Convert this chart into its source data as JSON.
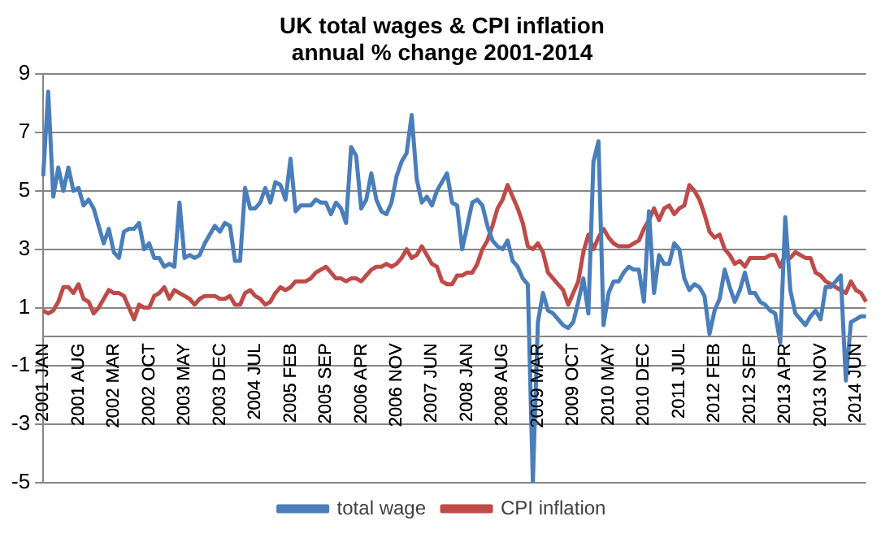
{
  "chart_data": {
    "type": "line",
    "title": [
      "UK total wages & CPI inflation",
      "annual % change 2001-2014"
    ],
    "categories": [
      "2001 JAN",
      null,
      null,
      null,
      null,
      null,
      null,
      "2001 AUG",
      null,
      null,
      null,
      null,
      null,
      null,
      "2002 MAR",
      null,
      null,
      null,
      null,
      null,
      null,
      "2002 OCT",
      null,
      null,
      null,
      null,
      null,
      null,
      "2003 MAY",
      null,
      null,
      null,
      null,
      null,
      null,
      "2003 DEC",
      null,
      null,
      null,
      null,
      null,
      null,
      "2004 JUL",
      null,
      null,
      null,
      null,
      null,
      null,
      "2005 FEB",
      null,
      null,
      null,
      null,
      null,
      null,
      "2005 SEP",
      null,
      null,
      null,
      null,
      null,
      null,
      "2006 APR",
      null,
      null,
      null,
      null,
      null,
      null,
      "2006 NOV",
      null,
      null,
      null,
      null,
      null,
      null,
      "2007 JUN",
      null,
      null,
      null,
      null,
      null,
      null,
      "2008 JAN",
      null,
      null,
      null,
      null,
      null,
      null,
      "2008 AUG",
      null,
      null,
      null,
      null,
      null,
      null,
      "2009 MAR",
      null,
      null,
      null,
      null,
      null,
      null,
      "2009 OCT",
      null,
      null,
      null,
      null,
      null,
      null,
      "2010 MAY",
      null,
      null,
      null,
      null,
      null,
      null,
      "2010 DEC",
      null,
      null,
      null,
      null,
      null,
      null,
      "2011 JUL",
      null,
      null,
      null,
      null,
      null,
      null,
      "2012 FEB",
      null,
      null,
      null,
      null,
      null,
      null,
      "2012 SEP",
      null,
      null,
      null,
      null,
      null,
      null,
      "2013 APR",
      null,
      null,
      null,
      null,
      null,
      null,
      "2013 NOV",
      null,
      null,
      null,
      null,
      null,
      null,
      "2014 JUN",
      null,
      null
    ],
    "series": [
      {
        "name": "total wage",
        "color": "#4a7ebb",
        "values": [
          5.5,
          8.4,
          4.8,
          5.8,
          5.0,
          5.8,
          5.0,
          5.1,
          4.5,
          4.7,
          4.4,
          3.8,
          3.2,
          3.7,
          2.9,
          2.7,
          3.6,
          3.7,
          3.7,
          3.9,
          3.0,
          3.2,
          2.7,
          2.7,
          2.4,
          2.5,
          2.4,
          4.6,
          2.7,
          2.8,
          2.7,
          2.8,
          3.2,
          3.5,
          3.8,
          3.6,
          3.9,
          3.8,
          2.6,
          2.6,
          5.1,
          4.4,
          4.4,
          4.6,
          5.1,
          4.6,
          5.3,
          5.2,
          4.7,
          6.1,
          4.3,
          4.5,
          4.5,
          4.5,
          4.7,
          4.6,
          4.6,
          4.2,
          4.6,
          4.4,
          3.9,
          6.5,
          6.2,
          4.4,
          4.7,
          5.6,
          4.7,
          4.3,
          4.2,
          4.6,
          5.5,
          6.0,
          6.3,
          7.6,
          5.4,
          4.6,
          4.8,
          4.5,
          5.0,
          5.3,
          5.6,
          4.6,
          4.5,
          3.0,
          3.8,
          4.6,
          4.7,
          4.5,
          3.8,
          3.3,
          3.1,
          3.0,
          3.3,
          2.6,
          2.4,
          2.0,
          1.8,
          -5.0,
          0.5,
          1.5,
          0.9,
          0.8,
          0.6,
          0.4,
          0.3,
          0.5,
          1.2,
          2.0,
          0.8,
          6.0,
          6.7,
          0.4,
          1.5,
          1.9,
          1.9,
          2.2,
          2.4,
          2.3,
          2.3,
          1.2,
          4.3,
          1.5,
          2.8,
          2.5,
          2.5,
          3.2,
          3.0,
          2.0,
          1.6,
          1.8,
          1.7,
          1.4,
          0.1,
          0.9,
          1.3,
          2.3,
          1.7,
          1.2,
          1.6,
          2.2,
          1.5,
          1.5,
          1.2,
          1.1,
          0.9,
          0.8,
          -0.2,
          4.1,
          1.6,
          0.8,
          0.6,
          0.4,
          0.7,
          0.9,
          0.6,
          1.7,
          1.7,
          1.9,
          2.1,
          -1.5,
          0.5,
          0.6,
          0.7,
          0.7
        ]
      },
      {
        "name": "CPI inflation",
        "color": "#be4b48",
        "values": [
          0.9,
          0.8,
          0.9,
          1.2,
          1.7,
          1.7,
          1.5,
          1.8,
          1.3,
          1.2,
          0.8,
          1.0,
          1.3,
          1.6,
          1.5,
          1.5,
          1.4,
          1.0,
          0.6,
          1.1,
          1.0,
          1.0,
          1.4,
          1.5,
          1.7,
          1.3,
          1.6,
          1.5,
          1.4,
          1.3,
          1.1,
          1.3,
          1.4,
          1.4,
          1.4,
          1.3,
          1.3,
          1.4,
          1.1,
          1.1,
          1.5,
          1.6,
          1.4,
          1.3,
          1.1,
          1.2,
          1.5,
          1.7,
          1.6,
          1.7,
          1.9,
          1.9,
          1.9,
          2.0,
          2.2,
          2.3,
          2.4,
          2.2,
          2.0,
          2.0,
          1.9,
          2.0,
          2.0,
          1.9,
          2.1,
          2.3,
          2.4,
          2.4,
          2.5,
          2.4,
          2.5,
          2.7,
          3.0,
          2.7,
          2.8,
          3.1,
          2.8,
          2.5,
          2.4,
          1.9,
          1.8,
          1.8,
          2.1,
          2.1,
          2.2,
          2.2,
          2.5,
          3.0,
          3.3,
          3.8,
          4.4,
          4.7,
          5.2,
          4.8,
          4.4,
          3.9,
          3.1,
          3.0,
          3.2,
          2.9,
          2.2,
          2.0,
          1.8,
          1.6,
          1.1,
          1.5,
          1.9,
          2.9,
          3.5,
          3.0,
          3.4,
          3.7,
          3.4,
          3.2,
          3.1,
          3.1,
          3.1,
          3.2,
          3.3,
          3.7,
          4.0,
          4.4,
          4.0,
          4.4,
          4.5,
          4.2,
          4.4,
          4.5,
          5.2,
          5.0,
          4.7,
          4.2,
          3.6,
          3.4,
          3.5,
          3.0,
          2.8,
          2.5,
          2.6,
          2.4,
          2.7,
          2.7,
          2.7,
          2.7,
          2.8,
          2.8,
          2.4,
          2.8,
          2.7,
          2.9,
          2.8,
          2.7,
          2.7,
          2.2,
          2.1,
          1.9,
          1.8,
          1.7,
          1.6,
          1.5,
          1.9,
          1.6,
          1.5,
          1.2
        ]
      }
    ],
    "ylim": [
      -5,
      9
    ],
    "yticks": [
      -5,
      -3,
      -1,
      1,
      3,
      5,
      7,
      9
    ],
    "grid": "y",
    "legend": "bottom",
    "marker": "none",
    "line_style": "solid"
  }
}
